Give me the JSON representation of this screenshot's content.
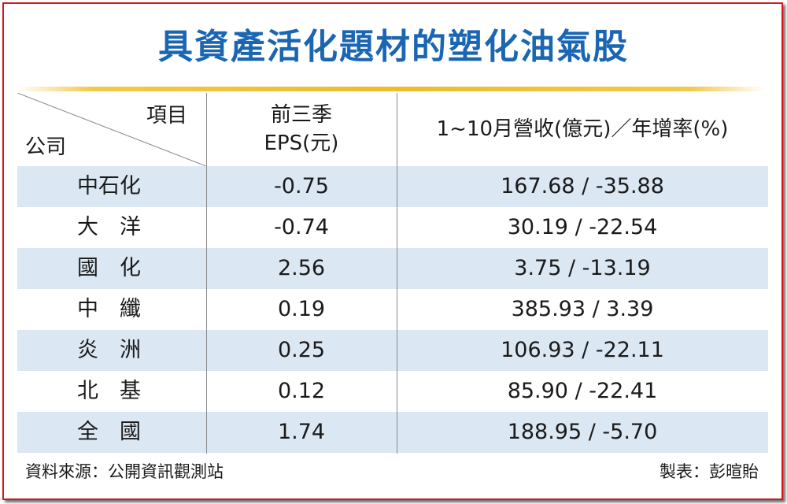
{
  "title": "具資產活化題材的塑化油氣股",
  "table": {
    "header": {
      "item_label": "項目",
      "company_label": "公司",
      "eps_label_line1": "前三季",
      "eps_label_line2": "EPS(元)",
      "revenue_label": "1~10月營收(億元)／年增率(%)"
    },
    "rows": [
      {
        "name": "中石化",
        "eps": "-0.75",
        "revenue": "167.68 / -35.88"
      },
      {
        "name": "大　洋",
        "eps": "-0.74",
        "revenue": "30.19 / -22.54"
      },
      {
        "name": "國　化",
        "eps": "2.56",
        "revenue": "3.75 / -13.19"
      },
      {
        "name": "中　纖",
        "eps": "0.19",
        "revenue": "385.93 / 3.39"
      },
      {
        "name": "炎　洲",
        "eps": "0.25",
        "revenue": "106.93 / -22.11"
      },
      {
        "name": "北　基",
        "eps": "0.12",
        "revenue": "85.90 / -22.41"
      },
      {
        "name": "全　國",
        "eps": "1.74",
        "revenue": "188.95 / -5.70"
      }
    ]
  },
  "footer": {
    "source": "資料來源：公開資訊觀測站",
    "maker": "製表：彭暄貽"
  },
  "colors": {
    "title": "#1a66b2",
    "frame_border": "#d9141b",
    "rule": "#eebc2c",
    "row_shade": "#dbe7f2"
  }
}
